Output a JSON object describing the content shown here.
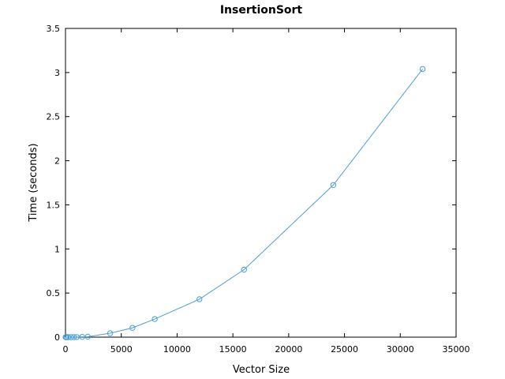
{
  "chart_data": {
    "type": "line",
    "title": "InsertionSort",
    "xlabel": "Vector Size",
    "ylabel": "Time (seconds)",
    "xlim": [
      0,
      35000
    ],
    "ylim": [
      0,
      3.5
    ],
    "xticks": [
      0,
      5000,
      10000,
      15000,
      20000,
      25000,
      30000,
      35000
    ],
    "yticks": [
      0,
      0.5,
      1,
      1.5,
      2,
      2.5,
      3,
      3.5
    ],
    "xtick_labels": [
      "0",
      "5000",
      "10000",
      "15000",
      "20000",
      "25000",
      "30000",
      "35000"
    ],
    "ytick_labels": [
      "0",
      "0.5",
      "1",
      "1.5",
      "2",
      "2.5",
      "3",
      "3.5"
    ],
    "grid": false,
    "line_color": "#4a9fd5",
    "marker": "circle",
    "series": [
      {
        "x": [
          10,
          50,
          100,
          250,
          500,
          750,
          1000,
          1500,
          2000,
          4000,
          6000,
          8000,
          12000,
          16000,
          24000,
          32000
        ],
        "y": [
          0.0,
          0.0,
          0.0,
          0.0,
          0.0,
          0.001,
          0.001,
          0.003,
          0.005,
          0.045,
          0.105,
          0.205,
          0.43,
          0.765,
          1.725,
          3.04
        ]
      }
    ]
  }
}
